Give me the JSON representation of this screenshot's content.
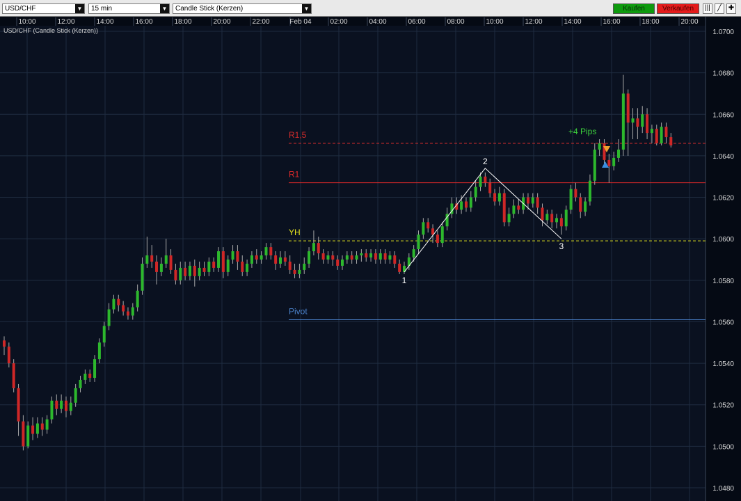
{
  "toolbar": {
    "symbol": "USD/CHF",
    "timeframe": "15 min",
    "chart_type": "Candle Stick (Kerzen)",
    "buy_label": "Kaufen",
    "sell_label": "Verkaufen",
    "tools": [
      "bar-chart-icon",
      "draw-line-icon",
      "crosshair-icon"
    ]
  },
  "chart": {
    "title": "USD/CHF (Candle Stick (Kerzen))"
  },
  "colors": {
    "background": "#0a1120",
    "grid": "#1f2c40",
    "axis_panel": "#050a14",
    "bull": "#2db82d",
    "bear": "#cf2727",
    "wick": "#a8a8a8",
    "r15": "#d42c2c",
    "r1": "#e02a2a",
    "yh": "#e6e61e",
    "pivot": "#4a80c8",
    "pattern": "#ffffff",
    "pips": "#3dd23d"
  },
  "chart_data": {
    "type": "candlestick",
    "ylim": [
      1.0475,
      1.0705
    ],
    "yticks": [
      "1.0700",
      "1.0680",
      "1.0660",
      "1.0640",
      "1.0620",
      "1.0600",
      "1.0580",
      "1.0560",
      "1.0540",
      "1.0520",
      "1.0500",
      "1.0480"
    ],
    "xticks": [
      "10:00",
      "12:00",
      "14:00",
      "16:00",
      "18:00",
      "20:00",
      "22:00",
      "Feb 04",
      "02:00",
      "04:00",
      "06:00",
      "08:00",
      "10:00",
      "12:00",
      "14:00",
      "16:00",
      "18:00",
      "20:00"
    ],
    "levels": [
      {
        "label": "R1,5",
        "value": 1.0646,
        "style": "dashed",
        "color_key": "r15"
      },
      {
        "label": "R1",
        "value": 1.0627,
        "style": "solid",
        "color_key": "r1"
      },
      {
        "label": "YH",
        "value": 1.0599,
        "style": "dashed",
        "color_key": "yh"
      },
      {
        "label": "Pivot",
        "value": 1.0561,
        "style": "solid",
        "color_key": "pivot"
      }
    ],
    "pattern_points": [
      {
        "label": "1",
        "x_index": 84,
        "price": 1.0584
      },
      {
        "label": "2",
        "x_index": 101,
        "price": 1.0634
      },
      {
        "label": "3",
        "x_index": 117,
        "price": 1.06
      }
    ],
    "annotation": "+4 Pips",
    "candles": [
      [
        1.0551,
        1.0548,
        1.0553,
        1.0544
      ],
      [
        1.0548,
        1.054,
        1.055,
        1.0538
      ],
      [
        1.054,
        1.0528,
        1.0542,
        1.0526
      ],
      [
        1.0528,
        1.0512,
        1.053,
        1.0505
      ],
      [
        1.0512,
        1.05,
        1.0515,
        1.0498
      ],
      [
        1.05,
        1.051,
        1.0512,
        1.0499
      ],
      [
        1.051,
        1.0506,
        1.0514,
        1.0503
      ],
      [
        1.0506,
        1.0511,
        1.0514,
        1.0504
      ],
      [
        1.0511,
        1.0508,
        1.0514,
        1.0505
      ],
      [
        1.0508,
        1.0513,
        1.0515,
        1.0506
      ],
      [
        1.0513,
        1.0522,
        1.0524,
        1.0511
      ],
      [
        1.0522,
        1.0518,
        1.0525,
        1.0515
      ],
      [
        1.0518,
        1.0522,
        1.0525,
        1.0516
      ],
      [
        1.0522,
        1.0517,
        1.0524,
        1.0514
      ],
      [
        1.0517,
        1.0521,
        1.0524,
        1.0515
      ],
      [
        1.0521,
        1.0528,
        1.053,
        1.0519
      ],
      [
        1.0528,
        1.0532,
        1.0534,
        1.0526
      ],
      [
        1.0532,
        1.0535,
        1.0537,
        1.053
      ],
      [
        1.0535,
        1.0533,
        1.0537,
        1.0531
      ],
      [
        1.0533,
        1.0542,
        1.0544,
        1.0531
      ],
      [
        1.0542,
        1.055,
        1.0552,
        1.054
      ],
      [
        1.055,
        1.0558,
        1.056,
        1.0548
      ],
      [
        1.0558,
        1.0566,
        1.0569,
        1.0556
      ],
      [
        1.0566,
        1.0571,
        1.0573,
        1.0564
      ],
      [
        1.0571,
        1.0568,
        1.0573,
        1.0565
      ],
      [
        1.0568,
        1.0565,
        1.057,
        1.0563
      ],
      [
        1.0565,
        1.0563,
        1.0567,
        1.0561
      ],
      [
        1.0563,
        1.0567,
        1.0569,
        1.0561
      ],
      [
        1.0567,
        1.0575,
        1.0578,
        1.0565
      ],
      [
        1.0575,
        1.0588,
        1.0591,
        1.0573
      ],
      [
        1.0588,
        1.0592,
        1.0601,
        1.0586
      ],
      [
        1.0592,
        1.0589,
        1.0597,
        1.0586
      ],
      [
        1.0589,
        1.0584,
        1.0592,
        1.0578
      ],
      [
        1.0584,
        1.0588,
        1.0591,
        1.0582
      ],
      [
        1.0588,
        1.0592,
        1.06,
        1.0586
      ],
      [
        1.0592,
        1.0585,
        1.0595,
        1.0583
      ],
      [
        1.0585,
        1.058,
        1.0588,
        1.0578
      ],
      [
        1.058,
        1.0586,
        1.0589,
        1.0578
      ],
      [
        1.0586,
        1.0582,
        1.0589,
        1.058
      ],
      [
        1.0582,
        1.0587,
        1.0589,
        1.058
      ],
      [
        1.0587,
        1.0582,
        1.059,
        1.0577
      ],
      [
        1.0582,
        1.0586,
        1.0589,
        1.058
      ],
      [
        1.0586,
        1.0584,
        1.0589,
        1.0582
      ],
      [
        1.0584,
        1.0589,
        1.0591,
        1.0582
      ],
      [
        1.0589,
        1.0586,
        1.0591,
        1.0584
      ],
      [
        1.0586,
        1.0594,
        1.0596,
        1.0584
      ],
      [
        1.0594,
        1.0584,
        1.0596,
        1.0581
      ],
      [
        1.0584,
        1.059,
        1.0592,
        1.0582
      ],
      [
        1.059,
        1.0594,
        1.0597,
        1.0588
      ],
      [
        1.0594,
        1.0589,
        1.0597,
        1.0585
      ],
      [
        1.0589,
        1.0584,
        1.0592,
        1.0582
      ],
      [
        1.0584,
        1.0588,
        1.059,
        1.0582
      ],
      [
        1.0588,
        1.0592,
        1.0594,
        1.0586
      ],
      [
        1.0592,
        1.059,
        1.0595,
        1.0588
      ],
      [
        1.059,
        1.0592,
        1.0594,
        1.0588
      ],
      [
        1.0592,
        1.0596,
        1.0598,
        1.059
      ],
      [
        1.0596,
        1.0592,
        1.0598,
        1.059
      ],
      [
        1.0592,
        1.0588,
        1.0594,
        1.0585
      ],
      [
        1.0588,
        1.0591,
        1.0594,
        1.0586
      ],
      [
        1.0591,
        1.0589,
        1.0594,
        1.0587
      ],
      [
        1.0589,
        1.0585,
        1.0592,
        1.0583
      ],
      [
        1.0585,
        1.0583,
        1.0588,
        1.0581
      ],
      [
        1.0583,
        1.0585,
        1.0588,
        1.0581
      ],
      [
        1.0585,
        1.0588,
        1.0591,
        1.0583
      ],
      [
        1.0588,
        1.0594,
        1.0596,
        1.0586
      ],
      [
        1.0594,
        1.0598,
        1.0604,
        1.0592
      ],
      [
        1.0598,
        1.0593,
        1.0601,
        1.059
      ],
      [
        1.0593,
        1.059,
        1.0595,
        1.0588
      ],
      [
        1.059,
        1.0592,
        1.0594,
        1.0588
      ],
      [
        1.0592,
        1.059,
        1.0594,
        1.0587
      ],
      [
        1.059,
        1.0587,
        1.0592,
        1.0585
      ],
      [
        1.0587,
        1.059,
        1.0592,
        1.0585
      ],
      [
        1.059,
        1.0592,
        1.0594,
        1.0588
      ],
      [
        1.0592,
        1.059,
        1.0594,
        1.0588
      ],
      [
        1.059,
        1.0592,
        1.0594,
        1.0588
      ],
      [
        1.0592,
        1.0593,
        1.0595,
        1.0589
      ],
      [
        1.0593,
        1.0591,
        1.0595,
        1.0589
      ],
      [
        1.0591,
        1.0593,
        1.0595,
        1.0589
      ],
      [
        1.0593,
        1.059,
        1.0595,
        1.0588
      ],
      [
        1.059,
        1.0593,
        1.0595,
        1.0588
      ],
      [
        1.0593,
        1.059,
        1.0595,
        1.0588
      ],
      [
        1.059,
        1.0592,
        1.0594,
        1.0588
      ],
      [
        1.0592,
        1.0588,
        1.0594,
        1.0586
      ],
      [
        1.0588,
        1.0584,
        1.059,
        1.0583
      ],
      [
        1.0584,
        1.0587,
        1.0589,
        1.0583
      ],
      [
        1.0587,
        1.0591,
        1.0593,
        1.0585
      ],
      [
        1.0591,
        1.0595,
        1.0597,
        1.0589
      ],
      [
        1.0595,
        1.0602,
        1.0604,
        1.0593
      ],
      [
        1.0602,
        1.0608,
        1.061,
        1.06
      ],
      [
        1.0608,
        1.0605,
        1.061,
        1.0603
      ],
      [
        1.0605,
        1.0602,
        1.0607,
        1.0598
      ],
      [
        1.0602,
        1.0598,
        1.0604,
        1.0596
      ],
      [
        1.0598,
        1.0606,
        1.0608,
        1.0596
      ],
      [
        1.0606,
        1.0612,
        1.0615,
        1.0604
      ],
      [
        1.0612,
        1.0617,
        1.062,
        1.061
      ],
      [
        1.0617,
        1.0614,
        1.062,
        1.0612
      ],
      [
        1.0614,
        1.0618,
        1.0621,
        1.0612
      ],
      [
        1.0618,
        1.0615,
        1.062,
        1.0613
      ],
      [
        1.0615,
        1.062,
        1.0623,
        1.0613
      ],
      [
        1.062,
        1.0625,
        1.0628,
        1.0618
      ],
      [
        1.0625,
        1.063,
        1.0632,
        1.0623
      ],
      [
        1.063,
        1.0627,
        1.0632,
        1.0625
      ],
      [
        1.0627,
        1.0622,
        1.0629,
        1.062
      ],
      [
        1.0622,
        1.0618,
        1.0624,
        1.0616
      ],
      [
        1.0618,
        1.0622,
        1.0625,
        1.0616
      ],
      [
        1.0622,
        1.0608,
        1.0624,
        1.0606
      ],
      [
        1.0608,
        1.0612,
        1.0615,
        1.0606
      ],
      [
        1.0612,
        1.0616,
        1.0619,
        1.061
      ],
      [
        1.0616,
        1.0614,
        1.0619,
        1.0612
      ],
      [
        1.0614,
        1.062,
        1.0622,
        1.0612
      ],
      [
        1.062,
        1.0617,
        1.0622,
        1.0614
      ],
      [
        1.0617,
        1.062,
        1.0622,
        1.0615
      ],
      [
        1.062,
        1.0615,
        1.0622,
        1.0612
      ],
      [
        1.0615,
        1.0609,
        1.0617,
        1.0606
      ],
      [
        1.0609,
        1.0612,
        1.0614,
        1.0607
      ],
      [
        1.0612,
        1.0608,
        1.0614,
        1.0605
      ],
      [
        1.0608,
        1.061,
        1.0612,
        1.0605
      ],
      [
        1.061,
        1.0606,
        1.0612,
        1.0602
      ],
      [
        1.0606,
        1.0614,
        1.0616,
        1.0604
      ],
      [
        1.0614,
        1.0624,
        1.0626,
        1.0612
      ],
      [
        1.0624,
        1.062,
        1.0627,
        1.0618
      ],
      [
        1.062,
        1.0613,
        1.0622,
        1.061
      ],
      [
        1.0613,
        1.0618,
        1.062,
        1.0611
      ],
      [
        1.0618,
        1.0628,
        1.0631,
        1.0616
      ],
      [
        1.0628,
        1.0643,
        1.0646,
        1.0626
      ],
      [
        1.0643,
        1.0646,
        1.0648,
        1.064
      ],
      [
        1.0646,
        1.0638,
        1.0648,
        1.0636
      ],
      [
        1.0638,
        1.0635,
        1.0641,
        1.0627
      ],
      [
        1.0635,
        1.0639,
        1.0642,
        1.0633
      ],
      [
        1.0639,
        1.0643,
        1.0648,
        1.0637
      ],
      [
        1.0643,
        1.067,
        1.0679,
        1.064
      ],
      [
        1.067,
        1.0656,
        1.0672,
        1.064
      ],
      [
        1.0656,
        1.0658,
        1.0663,
        1.0648
      ],
      [
        1.0658,
        1.0654,
        1.0663,
        1.0648
      ],
      [
        1.0654,
        1.066,
        1.0664,
        1.0651
      ],
      [
        1.066,
        1.0651,
        1.0663,
        1.0648
      ],
      [
        1.0651,
        1.0653,
        1.0655,
        1.0646
      ],
      [
        1.0653,
        1.0646,
        1.0655,
        1.0645
      ],
      [
        1.0646,
        1.0654,
        1.0656,
        1.0645
      ],
      [
        1.0654,
        1.0649,
        1.0656,
        1.0646
      ],
      [
        1.0649,
        1.0645,
        1.0651,
        1.0644
      ]
    ]
  }
}
